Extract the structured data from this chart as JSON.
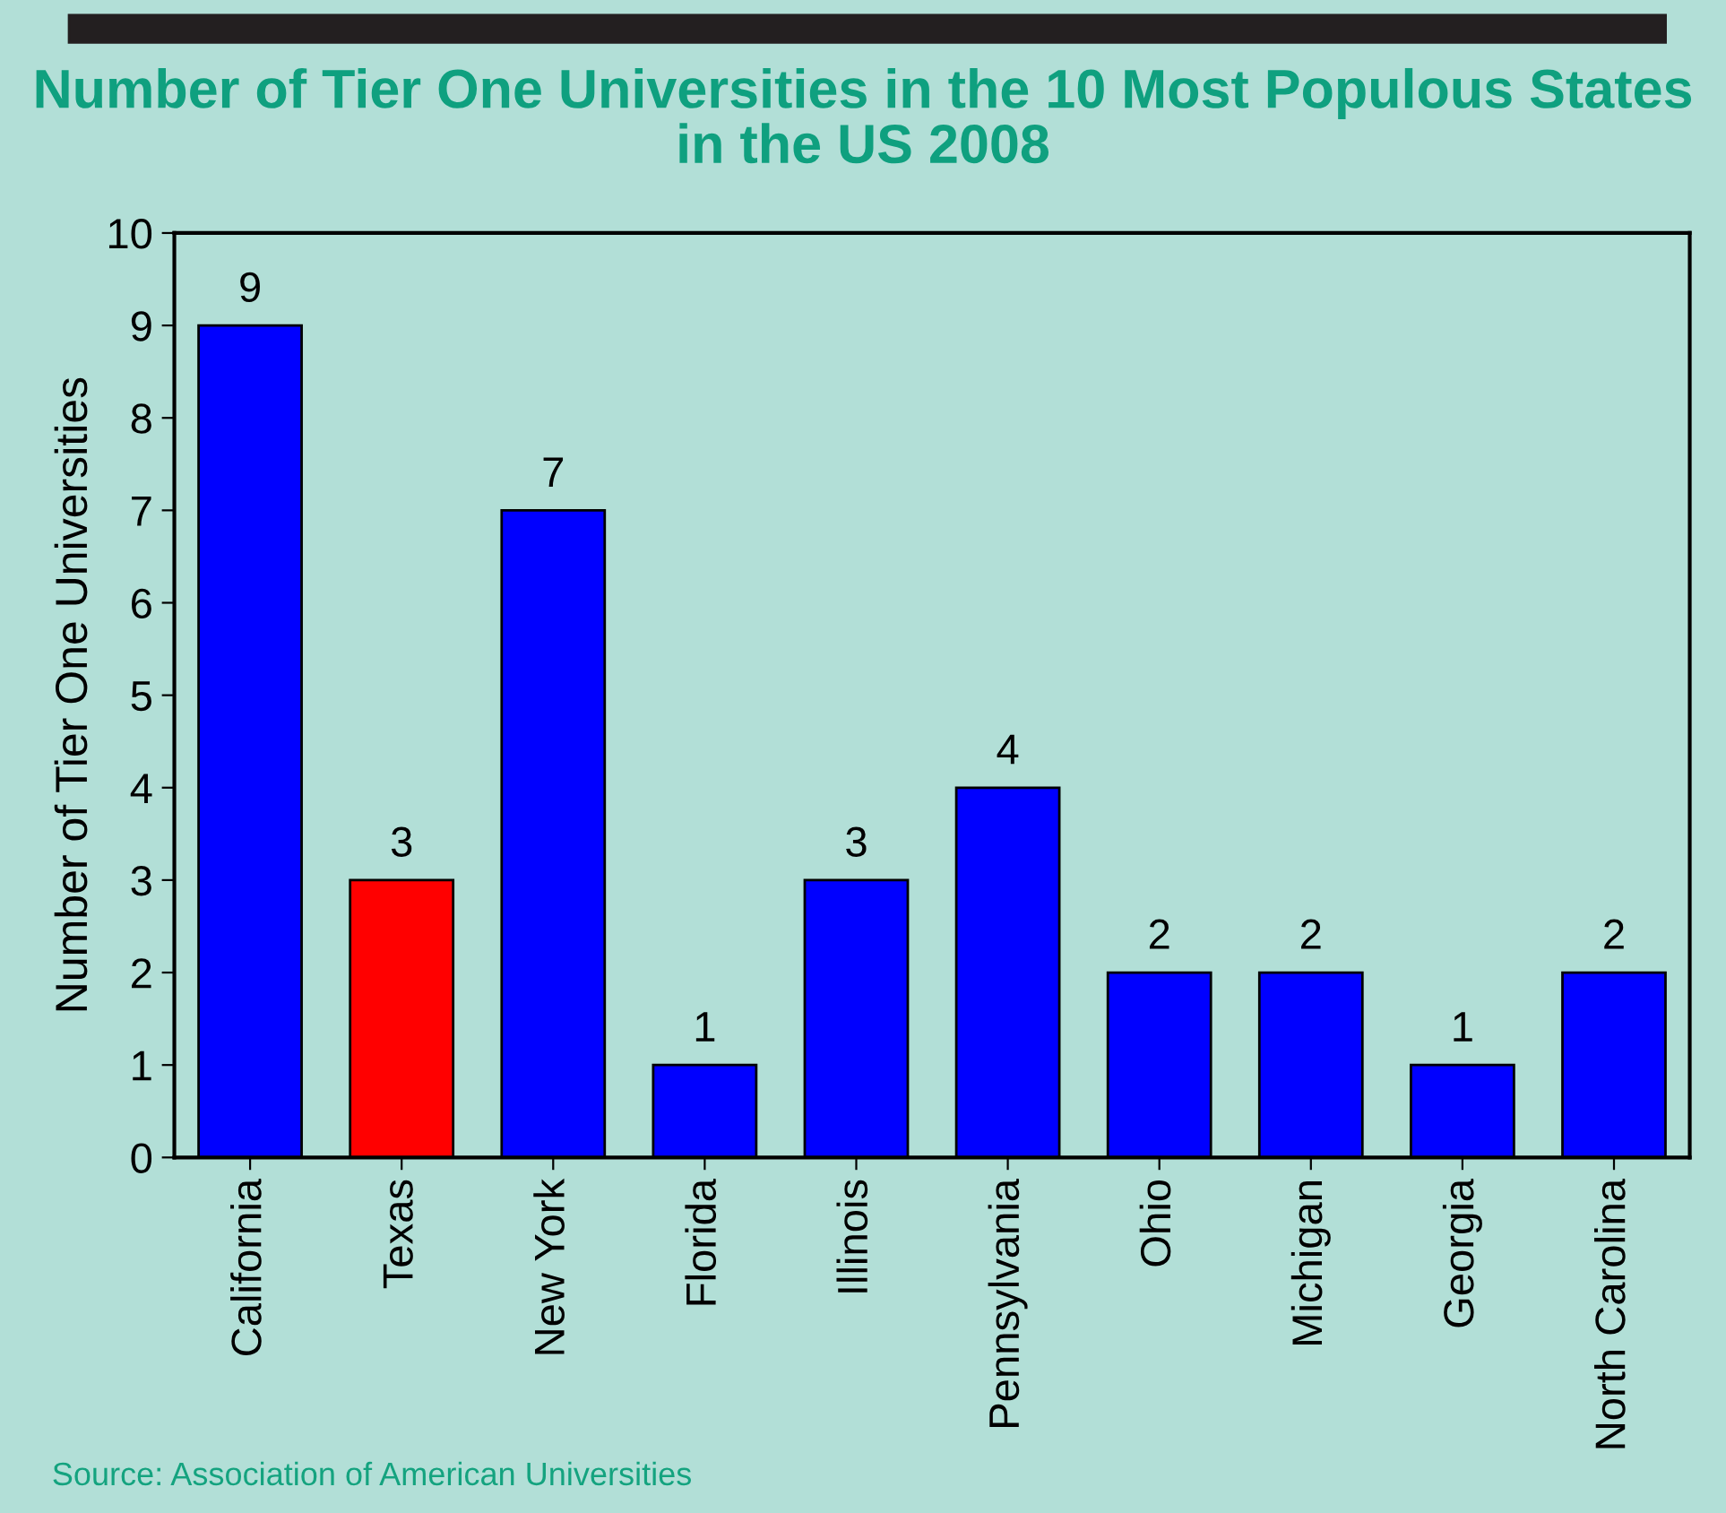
{
  "chart_data": {
    "type": "bar",
    "title": "Number of Tier One Universities in the 10 Most Populous States\nin the US 2008",
    "ylabel": "Number of Tier One Universities",
    "categories": [
      "California",
      "Texas",
      "New York",
      "Florida",
      "Illinois",
      "Pennsylvania",
      "Ohio",
      "Michigan",
      "Georgia",
      "North Carolina"
    ],
    "values": [
      9,
      3,
      7,
      1,
      3,
      4,
      2,
      2,
      1,
      2
    ],
    "colors": [
      "#0000ff",
      "#ff0000",
      "#0000ff",
      "#0000ff",
      "#0000ff",
      "#0000ff",
      "#0000ff",
      "#0000ff",
      "#0000ff",
      "#0000ff"
    ],
    "ylim": [
      0,
      10
    ],
    "yticks": [
      0,
      1,
      2,
      3,
      4,
      5,
      6,
      7,
      8,
      9,
      10
    ],
    "grid": false,
    "data_labels": true,
    "annotations": [
      "Source: Association of American Universities"
    ]
  }
}
